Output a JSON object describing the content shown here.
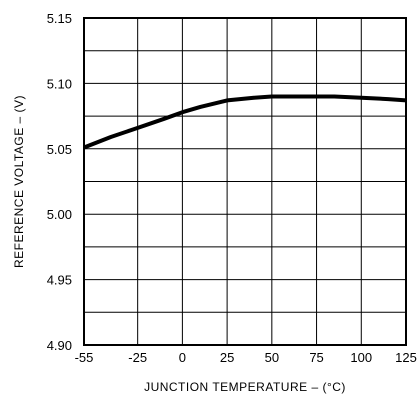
{
  "chart_data": {
    "type": "line",
    "xlabel": "JUNCTION TEMPERATURE – (°C)",
    "ylabel": "REFERENCE VOLTAGE – (V)",
    "xlim": [
      -55,
      125
    ],
    "ylim": [
      4.9,
      5.15
    ],
    "grid": true,
    "x_ticks": [
      -55,
      -25,
      0,
      25,
      50,
      75,
      100,
      125
    ],
    "x_tick_labels": [
      "-55",
      "-25",
      "0",
      "25",
      "50",
      "75",
      "100",
      "125"
    ],
    "y_ticks": [
      4.9,
      4.95,
      5.0,
      5.05,
      5.1,
      5.15
    ],
    "y_tick_labels": [
      "4.90",
      "4.95",
      "5.00",
      "5.05",
      "5.10",
      "5.15"
    ],
    "y_minor_ticks": [
      4.925,
      4.975,
      5.025,
      5.075,
      5.125
    ],
    "series": [
      {
        "x": [
          -55,
          -40,
          -25,
          -10,
          0,
          10,
          25,
          40,
          50,
          60,
          75,
          85,
          100,
          115,
          125
        ],
        "y": [
          5.051,
          5.059,
          5.066,
          5.073,
          5.078,
          5.082,
          5.087,
          5.089,
          5.09,
          5.09,
          5.09,
          5.09,
          5.089,
          5.088,
          5.087
        ]
      }
    ],
    "colors": {
      "line": "#000000",
      "grid": "#000000",
      "background": "#ffffff"
    }
  }
}
